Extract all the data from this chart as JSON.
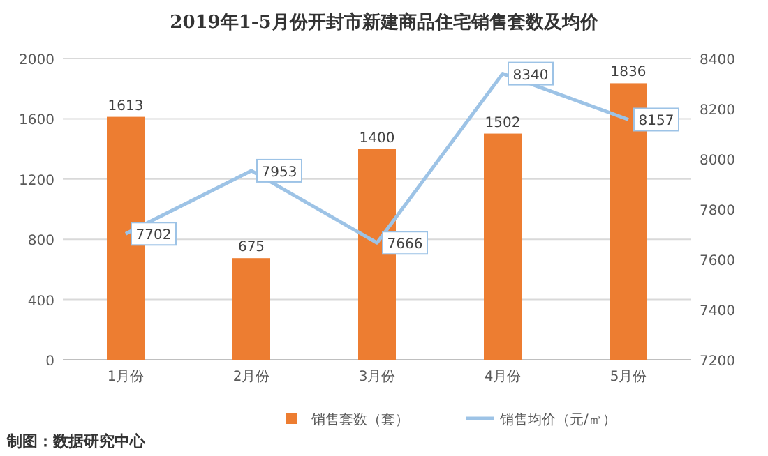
{
  "chart_data": {
    "type": "bar",
    "title": "2019年1-5月份开封市新建商品住宅销售套数及均价",
    "categories": [
      "1月份",
      "2月份",
      "3月份",
      "4月份",
      "5月份"
    ],
    "series": [
      {
        "name": "销售套数（套）",
        "color": "#ed7d31",
        "values": [
          1613,
          675,
          1400,
          1502,
          1836
        ]
      },
      {
        "name": "销售均价（元/㎡）",
        "type": "line",
        "axis": "y2",
        "color": "#9dc3e6",
        "values": [
          7702,
          7953,
          7666,
          8340,
          8157
        ]
      }
    ],
    "ylim": [
      0,
      2000
    ],
    "yticks": [
      0,
      400,
      800,
      1200,
      1600,
      2000
    ],
    "y2lim": [
      7200,
      8400
    ],
    "y2ticks": [
      7200,
      7400,
      7600,
      7800,
      8000,
      8200,
      8400
    ],
    "grid": "y",
    "legend": "bottom",
    "data_labels": true,
    "marker": "none",
    "line_style": "solid",
    "annotations": [
      "制图：数据研究中心"
    ]
  }
}
